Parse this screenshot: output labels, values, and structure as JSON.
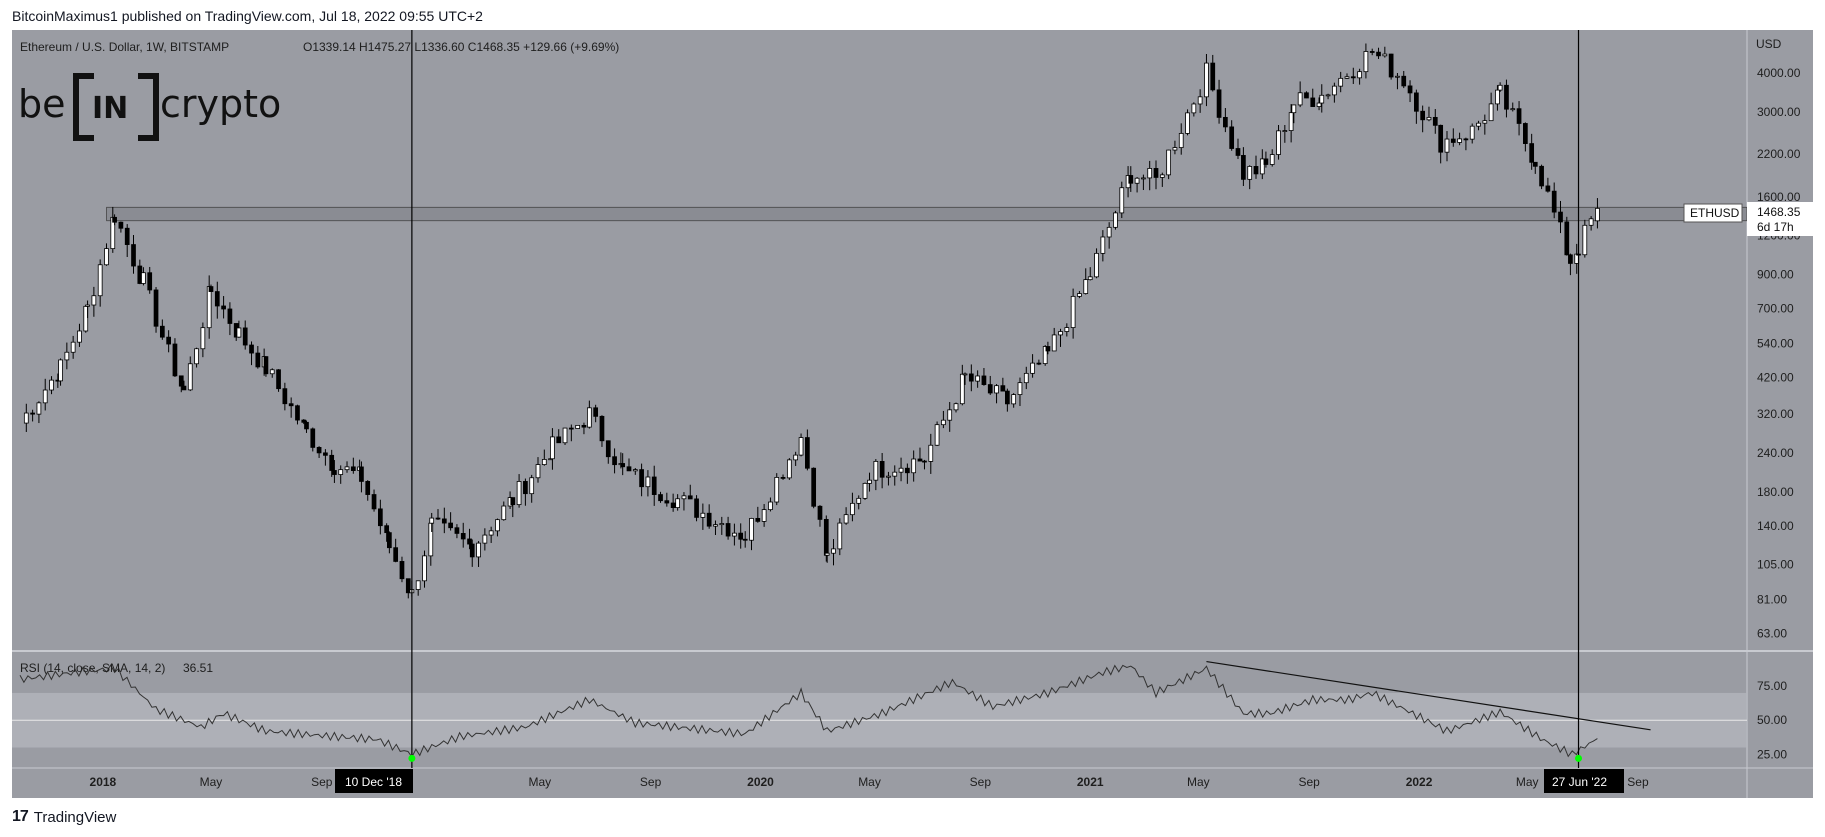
{
  "header": {
    "publisher_line": "BitcoinMaximus1 published on TradingView.com, Jul 18, 2022 09:55 UTC+2"
  },
  "symbol_info": {
    "title": "Ethereum / U.S. Dollar, 1W, BITSTAMP",
    "ohlc": "O1339.14 H1475.27 L1336.60 C1468.35 +129.66 (+9.69%)"
  },
  "watermark": {
    "text": "crypto",
    "box_text": "IN",
    "prefix": "be"
  },
  "price_axis": {
    "currency": "USD",
    "ticks": [
      "4000.00",
      "3000.00",
      "2200.00",
      "1600.00",
      "1200.00",
      "900.00",
      "700.00",
      "540.00",
      "420.00",
      "320.00",
      "240.00",
      "180.00",
      "140.00",
      "105.00",
      "81.00",
      "63.00"
    ]
  },
  "rsi_axis": {
    "ticks": [
      "75.00",
      "50.00",
      "25.00"
    ]
  },
  "rsi_label": "RSI (14, close, SMA, 14, 2)",
  "rsi_value": "36.51",
  "time_axis": {
    "ticks": [
      "2018",
      "May",
      "Sep",
      "May",
      "Sep",
      "2020",
      "May",
      "Sep",
      "2021",
      "May",
      "Sep",
      "2022",
      "May",
      "Sep"
    ],
    "highlight_left": "10 Dec '18",
    "highlight_right": "27 Jun '22"
  },
  "price_tag": {
    "symbol": "ETHUSD",
    "price": "1468.35",
    "countdown": "6d 17h"
  },
  "footer": {
    "brand": "TradingView"
  },
  "colors": {
    "background": "#9a9ca3",
    "candle_up": "#ffffff",
    "candle_down": "#000000",
    "rsi_band": "#b3b5bb",
    "horizontal_zone": "#8a8c93",
    "pivot_marker": "#00ff00"
  },
  "chart_data": {
    "type": "candlestick",
    "title": "Ethereum / U.S. Dollar, 1W, BITSTAMP",
    "yscale": "log",
    "ylim": [
      55,
      5500
    ],
    "x_range": [
      "2017-10",
      "2022-10"
    ],
    "horizontal_zone": [
      1340,
      1480
    ],
    "vertical_markers": [
      "2018-12-10",
      "2022-06-27"
    ],
    "price_path": [
      [
        "2017-10-01",
        300
      ],
      [
        "2017-11-15",
        450
      ],
      [
        "2017-12-15",
        700
      ],
      [
        "2018-01-14",
        1400
      ],
      [
        "2018-02-15",
        850
      ],
      [
        "2018-03-15",
        500
      ],
      [
        "2018-04-01",
        380
      ],
      [
        "2018-05-01",
        800
      ],
      [
        "2018-06-01",
        580
      ],
      [
        "2018-07-01",
        450
      ],
      [
        "2018-08-15",
        280
      ],
      [
        "2018-09-15",
        220
      ],
      [
        "2018-10-15",
        200
      ],
      [
        "2018-11-15",
        120
      ],
      [
        "2018-12-10",
        84
      ],
      [
        "2019-01-01",
        140
      ],
      [
        "2019-02-15",
        120
      ],
      [
        "2019-04-01",
        170
      ],
      [
        "2019-05-15",
        250
      ],
      [
        "2019-06-25",
        320
      ],
      [
        "2019-08-01",
        210
      ],
      [
        "2019-10-01",
        170
      ],
      [
        "2019-12-15",
        130
      ],
      [
        "2020-02-15",
        270
      ],
      [
        "2020-03-15",
        110
      ],
      [
        "2020-05-01",
        210
      ],
      [
        "2020-07-01",
        230
      ],
      [
        "2020-08-15",
        420
      ],
      [
        "2020-10-01",
        350
      ],
      [
        "2020-11-15",
        500
      ],
      [
        "2021-01-01",
        900
      ],
      [
        "2021-02-15",
        1900
      ],
      [
        "2021-03-15",
        1800
      ],
      [
        "2021-05-10",
        4000
      ],
      [
        "2021-06-20",
        1900
      ],
      [
        "2021-07-15",
        2000
      ],
      [
        "2021-08-15",
        3200
      ],
      [
        "2021-09-15",
        3400
      ],
      [
        "2021-11-10",
        4700
      ],
      [
        "2021-12-15",
        3800
      ],
      [
        "2022-01-25",
        2400
      ],
      [
        "2022-03-01",
        2600
      ],
      [
        "2022-04-01",
        3400
      ],
      [
        "2022-05-10",
        2100
      ],
      [
        "2022-06-18",
        1000
      ],
      [
        "2022-06-27",
        1100
      ],
      [
        "2022-07-18",
        1468.35
      ]
    ],
    "rsi": {
      "ylim": [
        15,
        100
      ],
      "band": [
        30,
        70
      ],
      "mid": 50,
      "current": 36.51,
      "values": [
        [
          "2017-10-01",
          80
        ],
        [
          "2017-12-01",
          85
        ],
        [
          "2018-01-14",
          88
        ],
        [
          "2018-03-01",
          58
        ],
        [
          "2018-04-20",
          45
        ],
        [
          "2018-05-15",
          55
        ],
        [
          "2018-07-01",
          42
        ],
        [
          "2018-09-15",
          38
        ],
        [
          "2018-11-01",
          36
        ],
        [
          "2018-12-10",
          25
        ],
        [
          "2019-02-01",
          38
        ],
        [
          "2019-04-15",
          45
        ],
        [
          "2019-06-25",
          65
        ],
        [
          "2019-08-15",
          48
        ],
        [
          "2019-10-15",
          44
        ],
        [
          "2019-12-15",
          40
        ],
        [
          "2020-02-15",
          70
        ],
        [
          "2020-03-15",
          42
        ],
        [
          "2020-05-15",
          55
        ],
        [
          "2020-08-01",
          78
        ],
        [
          "2020-09-15",
          60
        ],
        [
          "2020-11-15",
          70
        ],
        [
          "2021-01-15",
          85
        ],
        [
          "2021-02-15",
          90
        ],
        [
          "2021-03-15",
          70
        ],
        [
          "2021-05-10",
          88
        ],
        [
          "2021-06-20",
          55
        ],
        [
          "2021-07-20",
          55
        ],
        [
          "2021-09-05",
          65
        ],
        [
          "2021-10-15",
          65
        ],
        [
          "2021-11-10",
          70
        ],
        [
          "2021-12-25",
          55
        ],
        [
          "2022-02-01",
          42
        ],
        [
          "2022-04-01",
          56
        ],
        [
          "2022-05-20",
          35
        ],
        [
          "2022-06-20",
          25
        ],
        [
          "2022-07-18",
          36.51
        ]
      ],
      "trendline": [
        [
          "2021-05-10",
          93
        ],
        [
          "2022-09-15",
          43
        ]
      ]
    }
  }
}
